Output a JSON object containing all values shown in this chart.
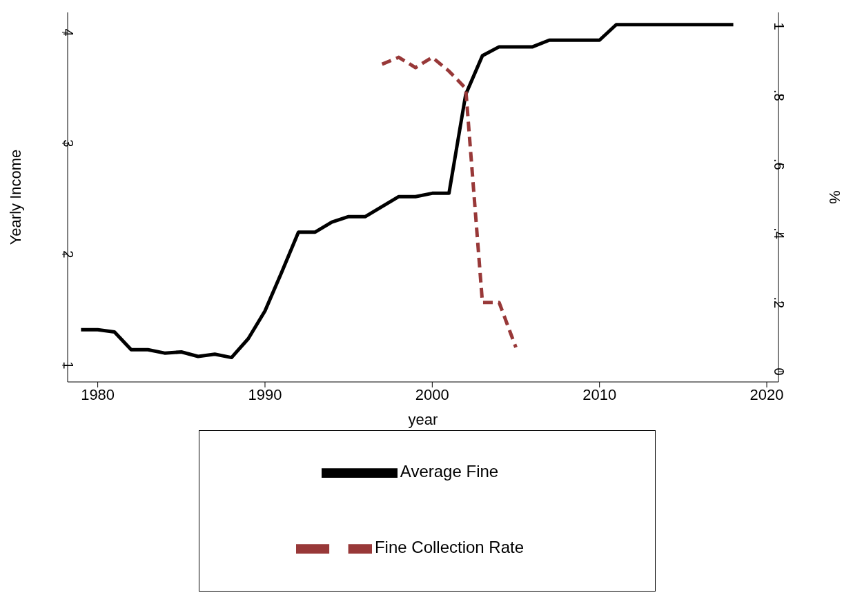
{
  "chart_data": {
    "type": "line",
    "xlabel": "year",
    "ylabel": "Yearly Income",
    "y2label": "%",
    "xlim": [
      1978.2,
      2020.7
    ],
    "xticks": [
      1980,
      1990,
      2000,
      2010,
      2020
    ],
    "ylim": [
      0.85,
      4.18
    ],
    "yticks": [
      1,
      2,
      3,
      4
    ],
    "y2lim": [
      -0.03,
      1.04
    ],
    "y2ticks": [
      0,
      {
        "value": 0.2,
        "label": ".2"
      },
      {
        "value": 0.4,
        "label": ".4"
      },
      {
        "value": 0.6,
        "label": ".6"
      },
      {
        "value": 0.8,
        "label": ".8"
      },
      1
    ],
    "grid": false,
    "legend": "bottom",
    "marker": "none",
    "series": [
      {
        "name": "Average Fine",
        "color": "#000000",
        "line_style": "solid",
        "x": [
          1979,
          1980,
          1981,
          1982,
          1983,
          1984,
          1985,
          1986,
          1987,
          1988,
          1989,
          1990,
          1991,
          1992,
          1993,
          1994,
          1995,
          1996,
          1997,
          1998,
          1999,
          2000,
          2001,
          2002,
          2003,
          2004,
          2005,
          2006,
          2007,
          2008,
          2009,
          2010,
          2011,
          2012,
          2013,
          2014,
          2015,
          2016,
          2017,
          2018
        ],
        "values": [
          1.32,
          1.32,
          1.3,
          1.14,
          1.14,
          1.11,
          1.12,
          1.08,
          1.1,
          1.07,
          1.24,
          1.49,
          1.84,
          2.2,
          2.2,
          2.29,
          2.34,
          2.34,
          2.43,
          2.52,
          2.52,
          2.55,
          2.55,
          3.44,
          3.79,
          3.87,
          3.87,
          3.87,
          3.93,
          3.93,
          3.93,
          3.93,
          4.07,
          4.07,
          4.07,
          4.07,
          4.07,
          4.07,
          4.07,
          4.07
        ]
      },
      {
        "name": "Fine Collection Rate",
        "color": "#983838",
        "line_style": "dashed",
        "axis": "y2",
        "x": [
          1997,
          1998,
          1999,
          2000,
          2001,
          2002,
          2003,
          2004,
          2005
        ],
        "values": [
          0.89,
          0.91,
          0.88,
          0.91,
          0.87,
          0.82,
          0.2,
          0.2,
          0.07
        ]
      }
    ]
  }
}
